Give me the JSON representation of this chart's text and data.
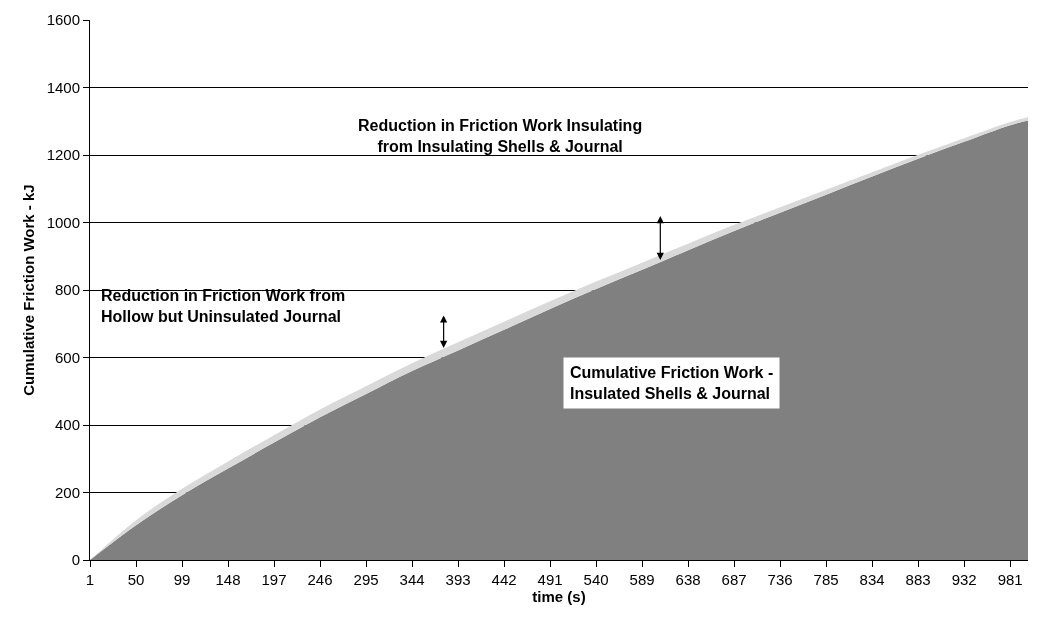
{
  "chart_data": {
    "type": "area",
    "stacked": true,
    "xlabel": "time (s)",
    "ylabel": "Cumulative Friction Work - kJ",
    "x": [
      1,
      50,
      99,
      148,
      197,
      246,
      295,
      344,
      393,
      442,
      491,
      540,
      589,
      638,
      687,
      736,
      785,
      834,
      883,
      932,
      981,
      1000
    ],
    "series": [
      {
        "name": "Cumulative Friction Work - Insulated Shells & Journal",
        "color": "#808080",
        "values": [
          0,
          103,
          192,
          271,
          348,
          423,
          492,
          560,
          621,
          682,
          744,
          803,
          860,
          918,
          975,
          1029,
          1082,
          1136,
          1189,
          1239,
          1288,
          1302
        ]
      },
      {
        "color": "#d9d9d9",
        "values": [
          0,
          15,
          19,
          21,
          22,
          23,
          23,
          23,
          24,
          24,
          23,
          22,
          21,
          19,
          18,
          16,
          15,
          13,
          12,
          11,
          10,
          10
        ]
      }
    ],
    "xlim": [
      1,
      1000
    ],
    "ylim": [
      0,
      1600
    ],
    "xticks": [
      1,
      50,
      99,
      148,
      197,
      246,
      295,
      344,
      393,
      442,
      491,
      540,
      589,
      638,
      687,
      736,
      785,
      834,
      883,
      932,
      981
    ],
    "yticks": [
      0,
      200,
      400,
      600,
      800,
      1000,
      1200,
      1400,
      1600
    ],
    "grid": "y",
    "legend": false,
    "annotations": [
      "Reduction in Friction Work from Hollow but Uninsulated Journal",
      "Reduction in Friction Work Insulating from Insulating Shells & Journal"
    ]
  }
}
